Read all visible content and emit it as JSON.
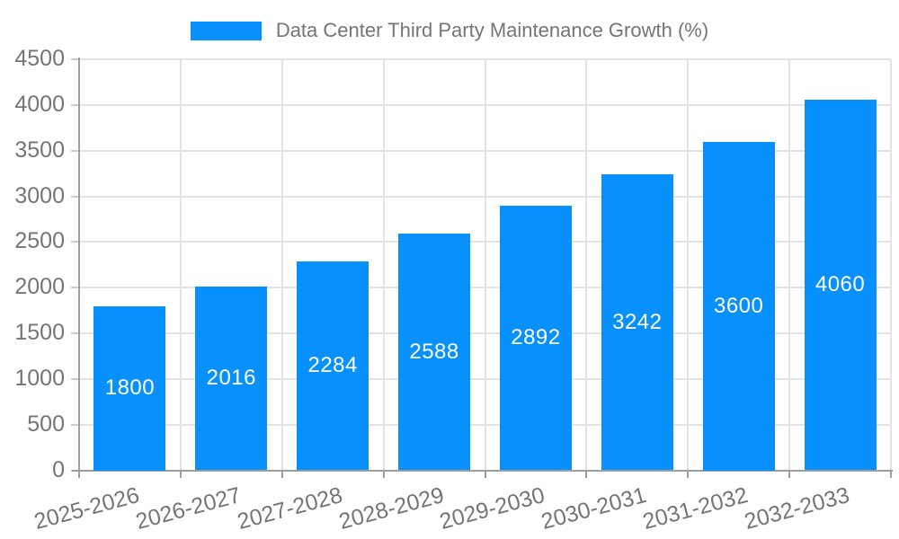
{
  "chart_data": {
    "type": "bar",
    "title": "Data Center Third Party Maintenance Growth (%)",
    "legend": {
      "label": "Data Center Third Party Maintenance Growth (%)",
      "position": "top-center",
      "swatch_color": "#0890fc"
    },
    "categories": [
      "2025-2026",
      "2026-2027",
      "2027-2028",
      "2028-2029",
      "2029-2030",
      "2030-2031",
      "2031-2032",
      "2032-2033"
    ],
    "values": [
      1800,
      2016,
      2284,
      2588,
      2892,
      3242,
      3600,
      4060
    ],
    "bar_value_labels": [
      "1800",
      "2016",
      "2284",
      "2588",
      "2892",
      "3242",
      "3600",
      "4060"
    ],
    "xlabel": "",
    "ylabel": "",
    "ylim": [
      0,
      4500
    ],
    "ytick_step": 500,
    "ytick_labels": [
      "0",
      "500",
      "1000",
      "1500",
      "2000",
      "2500",
      "3000",
      "3500",
      "4000",
      "4500"
    ],
    "grid": "horizontal-and-vertical",
    "x_label_rotation_deg": -15,
    "colors": {
      "bar": "#0890fc",
      "bar_label_text": "#ffffff",
      "axis_text": "#757575",
      "grid_line": "#e3e3e3",
      "axis_line": "#9e9e9e",
      "background": "#ffffff"
    }
  }
}
